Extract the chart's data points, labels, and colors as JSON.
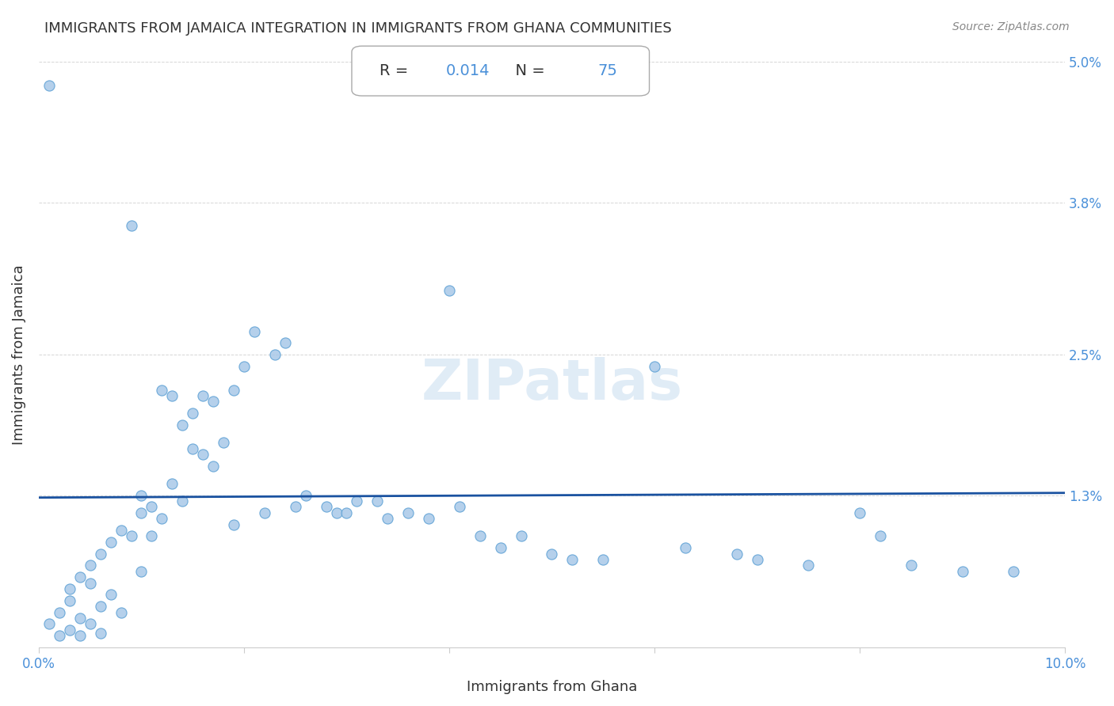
{
  "title": "IMMIGRANTS FROM JAMAICA INTEGRATION IN IMMIGRANTS FROM GHANA COMMUNITIES",
  "source": "Source: ZipAtlas.com",
  "xlabel": "Immigrants from Ghana",
  "ylabel": "Immigrants from Jamaica",
  "R_value": "0.014",
  "N_value": "75",
  "xlim": [
    0.0,
    0.1
  ],
  "ylim": [
    0.0,
    0.05
  ],
  "regression_y_start": 0.0128,
  "regression_y_end": 0.0132,
  "dot_color": "#a8c8e8",
  "dot_edge_color": "#5a9fd4",
  "regression_color": "#1a52a0",
  "title_color": "#333333",
  "source_color": "#888888",
  "grid_color": "#cccccc",
  "axis_color": "#4a90d9",
  "scatter_x": [
    0.001,
    0.001,
    0.002,
    0.002,
    0.003,
    0.003,
    0.003,
    0.004,
    0.004,
    0.004,
    0.005,
    0.005,
    0.005,
    0.006,
    0.006,
    0.006,
    0.007,
    0.007,
    0.008,
    0.008,
    0.009,
    0.009,
    0.01,
    0.01,
    0.01,
    0.011,
    0.011,
    0.012,
    0.012,
    0.013,
    0.013,
    0.014,
    0.014,
    0.015,
    0.015,
    0.016,
    0.016,
    0.017,
    0.017,
    0.018,
    0.019,
    0.019,
    0.02,
    0.021,
    0.022,
    0.023,
    0.024,
    0.025,
    0.026,
    0.028,
    0.029,
    0.03,
    0.031,
    0.033,
    0.034,
    0.036,
    0.038,
    0.04,
    0.041,
    0.043,
    0.045,
    0.047,
    0.05,
    0.052,
    0.055,
    0.06,
    0.063,
    0.068,
    0.07,
    0.075,
    0.08,
    0.082,
    0.085,
    0.09,
    0.095
  ],
  "scatter_y": [
    0.048,
    0.002,
    0.003,
    0.001,
    0.005,
    0.004,
    0.0015,
    0.006,
    0.0025,
    0.001,
    0.007,
    0.0055,
    0.002,
    0.008,
    0.0035,
    0.0012,
    0.009,
    0.0045,
    0.01,
    0.003,
    0.036,
    0.0095,
    0.0115,
    0.013,
    0.0065,
    0.012,
    0.0095,
    0.022,
    0.011,
    0.0215,
    0.014,
    0.019,
    0.0125,
    0.02,
    0.017,
    0.0215,
    0.0165,
    0.021,
    0.0155,
    0.0175,
    0.022,
    0.0105,
    0.024,
    0.027,
    0.0115,
    0.025,
    0.026,
    0.012,
    0.013,
    0.012,
    0.0115,
    0.0115,
    0.0125,
    0.0125,
    0.011,
    0.0115,
    0.011,
    0.0305,
    0.012,
    0.0095,
    0.0085,
    0.0095,
    0.008,
    0.0075,
    0.0075,
    0.024,
    0.0085,
    0.008,
    0.0075,
    0.007,
    0.0115,
    0.0095,
    0.007,
    0.0065,
    0.0065
  ]
}
